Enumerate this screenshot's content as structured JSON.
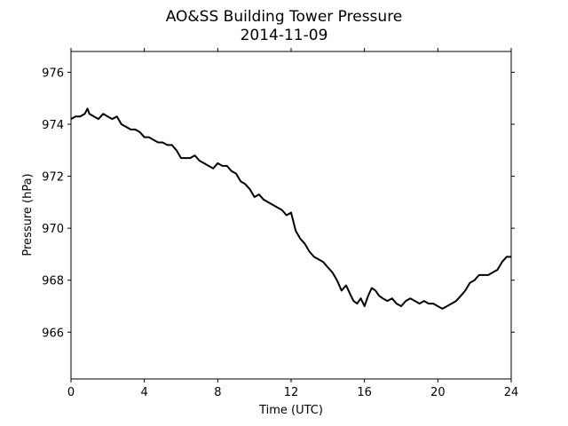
{
  "chart_data": {
    "type": "line",
    "title": "AO&SS Building Tower Pressure",
    "subtitle": "2014-11-09",
    "xlabel": "Time (UTC)",
    "ylabel": "Pressure (hPa)",
    "xlim": [
      0,
      24
    ],
    "ylim": [
      964.2,
      976.8
    ],
    "xticks": [
      0,
      4,
      8,
      12,
      16,
      20,
      24
    ],
    "yticks": [
      966,
      968,
      970,
      972,
      974,
      976
    ],
    "xtick_labels": [
      "0",
      "4",
      "8",
      "12",
      "16",
      "20",
      "24"
    ],
    "ytick_labels": [
      "966",
      "968",
      "970",
      "972",
      "974",
      "976"
    ],
    "grid": false,
    "series": [
      {
        "color": "#000000",
        "x": [
          0,
          0.25,
          0.5,
          0.75,
          0.9,
          1.0,
          1.25,
          1.5,
          1.75,
          2.0,
          2.25,
          2.5,
          2.75,
          3.0,
          3.25,
          3.5,
          3.75,
          4.0,
          4.25,
          4.5,
          4.75,
          5.0,
          5.25,
          5.5,
          5.75,
          6.0,
          6.25,
          6.5,
          6.75,
          7.0,
          7.25,
          7.5,
          7.75,
          8.0,
          8.25,
          8.5,
          8.75,
          9.0,
          9.25,
          9.5,
          9.75,
          10.0,
          10.25,
          10.5,
          10.75,
          11.0,
          11.25,
          11.5,
          11.75,
          12.0,
          12.25,
          12.5,
          12.75,
          13.0,
          13.25,
          13.5,
          13.75,
          14.0,
          14.25,
          14.5,
          14.75,
          15.0,
          15.2,
          15.4,
          15.6,
          15.8,
          16.0,
          16.2,
          16.4,
          16.6,
          16.8,
          17.0,
          17.25,
          17.5,
          17.75,
          18.0,
          18.25,
          18.5,
          18.75,
          19.0,
          19.25,
          19.5,
          19.75,
          20.0,
          20.25,
          20.5,
          20.75,
          21.0,
          21.25,
          21.5,
          21.75,
          22.0,
          22.25,
          22.5,
          22.75,
          23.0,
          23.25,
          23.5,
          23.75,
          24.0
        ],
        "y": [
          974.2,
          974.3,
          974.3,
          974.4,
          974.6,
          974.4,
          974.3,
          974.2,
          974.4,
          974.3,
          974.2,
          974.3,
          974.0,
          973.9,
          973.8,
          973.8,
          973.7,
          973.5,
          973.5,
          973.4,
          973.3,
          973.3,
          973.2,
          973.2,
          973.0,
          972.7,
          972.7,
          972.7,
          972.8,
          972.6,
          972.5,
          972.4,
          972.3,
          972.5,
          972.4,
          972.4,
          972.2,
          972.1,
          971.8,
          971.7,
          971.5,
          971.2,
          971.3,
          971.1,
          971.0,
          970.9,
          970.8,
          970.7,
          970.5,
          970.6,
          969.9,
          969.6,
          969.4,
          969.1,
          968.9,
          968.8,
          968.7,
          968.5,
          968.3,
          968.0,
          967.6,
          967.8,
          967.5,
          967.2,
          967.1,
          967.3,
          967.0,
          967.4,
          967.7,
          967.6,
          967.4,
          967.3,
          967.2,
          967.3,
          967.1,
          967.0,
          967.2,
          967.3,
          967.2,
          967.1,
          967.2,
          967.1,
          967.1,
          967.0,
          966.9,
          967.0,
          967.1,
          967.2,
          967.4,
          967.6,
          967.9,
          968.0,
          968.2,
          968.2,
          968.2,
          968.3,
          968.4,
          968.7,
          968.9,
          968.9
        ]
      }
    ]
  }
}
